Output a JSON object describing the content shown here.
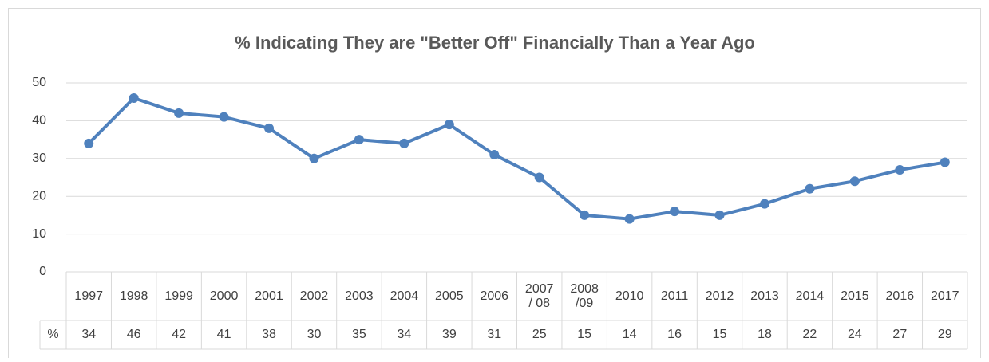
{
  "chart_data": {
    "type": "line",
    "title": "% Indicating They are \"Better Off\" Financially Than a Year Ago",
    "categories": [
      "1997",
      "1998",
      "1999",
      "2000",
      "2001",
      "2002",
      "2003",
      "2004",
      "2005",
      "2006",
      "2007 / 08",
      "2008 /09",
      "2010",
      "2011",
      "2012",
      "2013",
      "2014",
      "2015",
      "2016",
      "2017"
    ],
    "series": [
      {
        "name": "%",
        "color": "#4f81bd",
        "values": [
          34,
          46,
          42,
          41,
          38,
          30,
          35,
          34,
          39,
          31,
          25,
          15,
          14,
          16,
          15,
          18,
          22,
          24,
          27,
          29
        ]
      }
    ],
    "ylim": [
      0,
      50
    ],
    "yticks": [
      0,
      10,
      20,
      30,
      40,
      50
    ],
    "grid": true
  }
}
